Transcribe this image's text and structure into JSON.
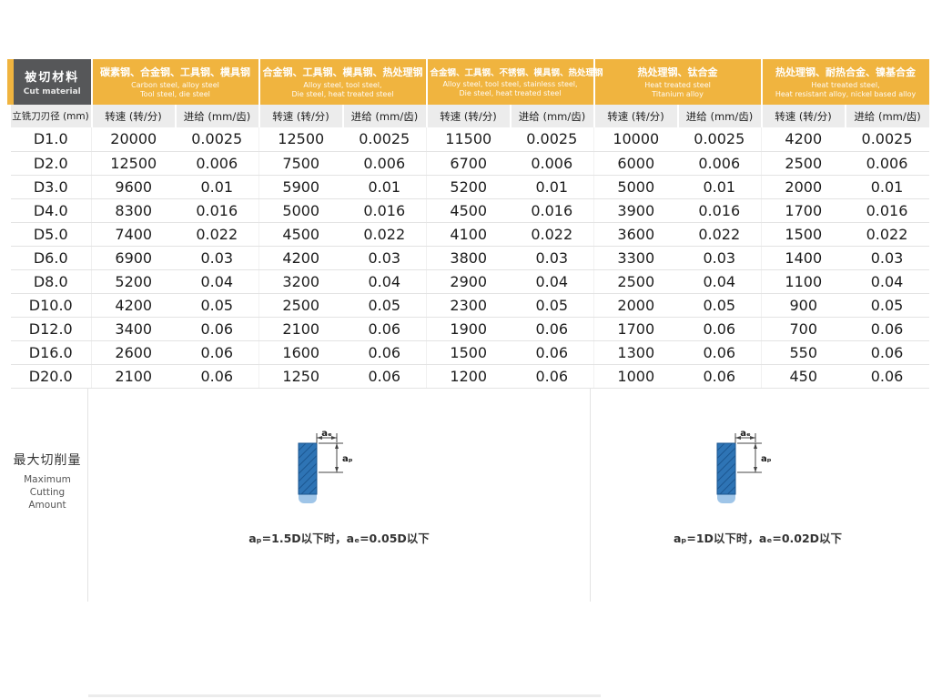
{
  "colors": {
    "gold": "#F0B43F",
    "corner_bg": "#565759",
    "subheader_bg": "#ECECEC",
    "diagram_blue": "#2E74B5",
    "diagram_light_blue": "#9FC5E8"
  },
  "table": {
    "corner_zh": "被切材料",
    "corner_en": "Cut material",
    "row_header": "立铣刀刃径 (mm)",
    "speed_header": "转速 (转/分)",
    "feed_header": "进给 (mm/齿)",
    "groups": [
      {
        "zh": "碳素钢、合金钢、工具钢、模具钢",
        "en1": "Carbon steel,  alloy steel",
        "en2": "Tool steel,  die steel"
      },
      {
        "zh": "合金钢、工具钢、模具钢、热处理钢",
        "en1": "Alloy steel, tool steel,",
        "en2": "Die steel, heat treated steel"
      },
      {
        "zh": "合金钢、工具钢、不锈钢、模具钢、热处理钢",
        "en1": "Alloy steel, tool steel, stainless steel,",
        "en2": "Die steel, heat treated steel"
      },
      {
        "zh": "热处理钢、钛合金",
        "en1": "Heat treated steel",
        "en2": "Titanium alloy"
      },
      {
        "zh": "热处理钢、耐热合金、镍基合金",
        "en1": "Heat treated steel,",
        "en2": "Heat resistant alloy,  nickel based alloy"
      }
    ],
    "rows": [
      {
        "d": "D1.0",
        "values": [
          "20000",
          "0.0025",
          "12500",
          "0.0025",
          "11500",
          "0.0025",
          "10000",
          "0.0025",
          "4200",
          "0.0025"
        ]
      },
      {
        "d": "D2.0",
        "values": [
          "12500",
          "0.006",
          "7500",
          "0.006",
          "6700",
          "0.006",
          "6000",
          "0.006",
          "2500",
          "0.006"
        ]
      },
      {
        "d": "D3.0",
        "values": [
          "9600",
          "0.01",
          "5900",
          "0.01",
          "5200",
          "0.01",
          "5000",
          "0.01",
          "2000",
          "0.01"
        ]
      },
      {
        "d": "D4.0",
        "values": [
          "8300",
          "0.016",
          "5000",
          "0.016",
          "4500",
          "0.016",
          "3900",
          "0.016",
          "1700",
          "0.016"
        ]
      },
      {
        "d": "D5.0",
        "values": [
          "7400",
          "0.022",
          "4500",
          "0.022",
          "4100",
          "0.022",
          "3600",
          "0.022",
          "1500",
          "0.022"
        ]
      },
      {
        "d": "D6.0",
        "values": [
          "6900",
          "0.03",
          "4200",
          "0.03",
          "3800",
          "0.03",
          "3300",
          "0.03",
          "1400",
          "0.03"
        ]
      },
      {
        "d": "D8.0",
        "values": [
          "5200",
          "0.04",
          "3200",
          "0.04",
          "2900",
          "0.04",
          "2500",
          "0.04",
          "1100",
          "0.04"
        ]
      },
      {
        "d": "D10.0",
        "values": [
          "4200",
          "0.05",
          "2500",
          "0.05",
          "2300",
          "0.05",
          "2000",
          "0.05",
          "900",
          "0.05"
        ]
      },
      {
        "d": "D12.0",
        "values": [
          "3400",
          "0.06",
          "2100",
          "0.06",
          "1900",
          "0.06",
          "1700",
          "0.06",
          "700",
          "0.06"
        ]
      },
      {
        "d": "D16.0",
        "values": [
          "2600",
          "0.06",
          "1600",
          "0.06",
          "1500",
          "0.06",
          "1300",
          "0.06",
          "550",
          "0.06"
        ]
      },
      {
        "d": "D20.0",
        "values": [
          "2100",
          "0.06",
          "1250",
          "0.06",
          "1200",
          "0.06",
          "1000",
          "0.06",
          "450",
          "0.06"
        ]
      }
    ]
  },
  "bottom": {
    "title_zh": "最大切削量",
    "title_en1": "Maximum Cutting",
    "title_en2": "Amount",
    "diagrams": [
      {
        "ae_label": "aₑ",
        "ap_label": "aₚ",
        "caption": "aₚ=1.5D以下时，aₑ=0.05D以下"
      },
      {
        "ae_label": "aₑ",
        "ap_label": "aₚ",
        "caption": "aₚ=1D以下时，aₑ=0.02D以下"
      }
    ]
  }
}
